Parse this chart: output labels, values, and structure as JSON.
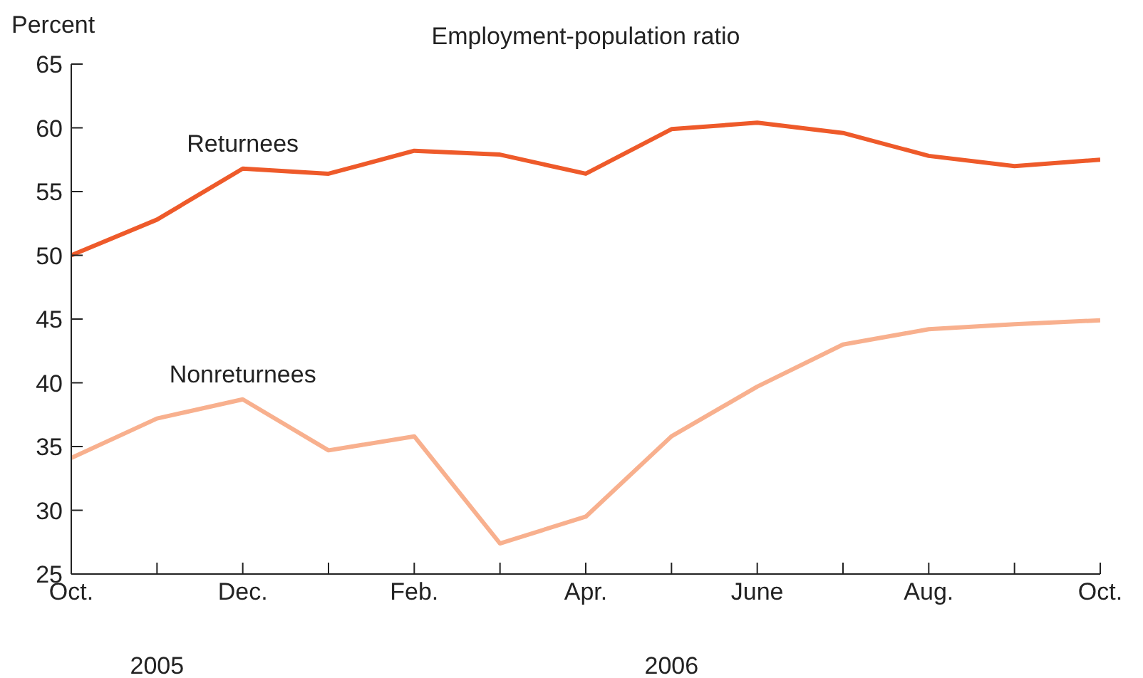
{
  "chart_data": {
    "type": "line",
    "title": "Employment-population ratio",
    "ylabel": "Percent",
    "categories": [
      "Oct.",
      null,
      "Dec.",
      null,
      "Feb.",
      null,
      "Apr.",
      null,
      "June",
      null,
      "Aug.",
      null,
      "Oct."
    ],
    "series": [
      {
        "name": "Returnees",
        "color": "#ee5a2a",
        "values": [
          50.0,
          52.8,
          56.8,
          56.4,
          58.2,
          57.9,
          56.4,
          59.9,
          60.4,
          59.6,
          57.8,
          57.0,
          57.5
        ]
      },
      {
        "name": "Nonreturnees",
        "color": "#f8b08e",
        "values": [
          34.1,
          37.2,
          38.7,
          34.7,
          35.8,
          27.4,
          29.5,
          35.8,
          39.7,
          43.0,
          44.2,
          44.6,
          44.9
        ]
      }
    ],
    "annotations": [
      "2005",
      "2006"
    ],
    "ylim": [
      25,
      65
    ],
    "yticks": [
      25,
      30,
      35,
      40,
      45,
      50,
      55,
      60,
      65
    ],
    "grid": false,
    "marker": "none",
    "line_style": "solid"
  }
}
